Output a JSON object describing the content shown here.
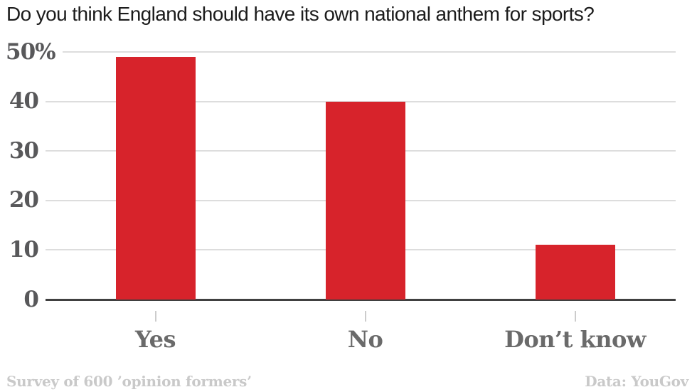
{
  "title": "Do you think England should have its own national anthem for sports?",
  "footer": {
    "left": "Survey of 600 ’opinion formers’",
    "right": "Data: YouGov"
  },
  "colors": {
    "bar": "#d7232b",
    "grid_line": "#dddddd",
    "axis_line": "#404040",
    "ytick_label": "#58585a",
    "category_label": "#6a6a6a",
    "title_text": "#1c1c1c",
    "footer_text": "#c9c9c9",
    "xtick_mark": "#cccccc"
  },
  "chart_data": {
    "type": "bar",
    "title": "Do you think England should have its own national anthem for sports?",
    "categories": [
      "Yes",
      "No",
      "Don’t know"
    ],
    "values": [
      49,
      40,
      11
    ],
    "xlabel": "",
    "ylabel": "",
    "ylim": [
      0,
      50
    ],
    "yticks": [
      {
        "value": 50,
        "label": "50%"
      },
      {
        "value": 40,
        "label": "40"
      },
      {
        "value": 30,
        "label": "30"
      },
      {
        "value": 20,
        "label": "20"
      },
      {
        "value": 10,
        "label": "10"
      },
      {
        "value": 0,
        "label": "0"
      }
    ],
    "grid": "horizontal",
    "legend": "none",
    "source_note": "Survey of 600 ’opinion formers’",
    "data_note": "Data: YouGov"
  }
}
